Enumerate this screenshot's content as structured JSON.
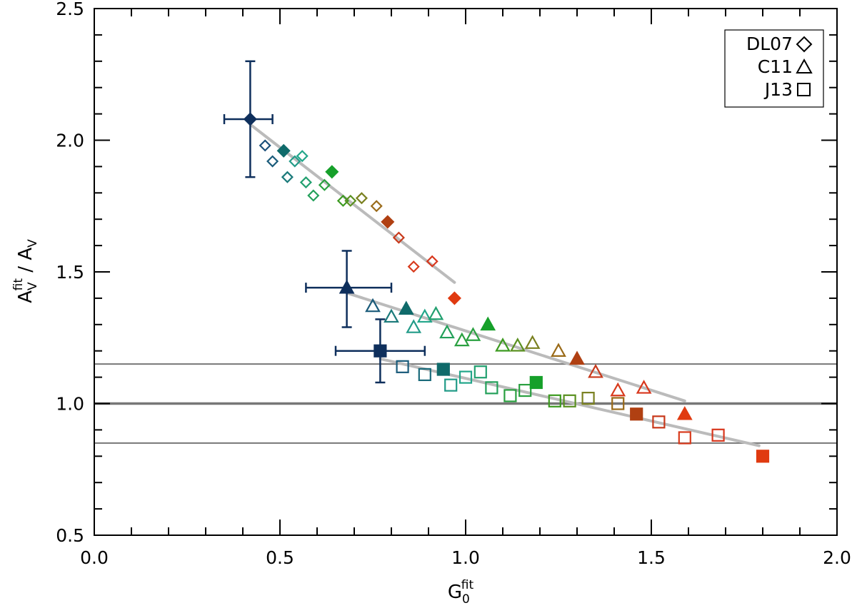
{
  "chart_data": {
    "type": "scatter",
    "title": "",
    "xlabel": {
      "base": "G",
      "sub": "0",
      "sup": "fit"
    },
    "ylabel": {
      "base": "A",
      "sub": "V",
      "sup": "fit",
      "separator": " / ",
      "denominator": {
        "base": "A",
        "sub": "V"
      }
    },
    "xlim": [
      0.0,
      2.0
    ],
    "ylim": [
      0.5,
      2.5
    ],
    "xticks": [
      "0.0",
      "0.5",
      "1.0",
      "1.5",
      "2.0"
    ],
    "yticks": [
      "0.5",
      "1.0",
      "1.5",
      "2.0",
      "2.5"
    ],
    "xtick_values": [
      0.0,
      0.5,
      1.0,
      1.5,
      2.0
    ],
    "ytick_values": [
      0.5,
      1.0,
      1.5,
      2.0,
      2.5
    ],
    "reference_lines": [
      {
        "y": 1.0,
        "color": "#777777",
        "style": "thick"
      },
      {
        "y": 1.15,
        "color": "#777777",
        "style": "thin"
      },
      {
        "y": 0.85,
        "color": "#777777",
        "style": "thin"
      }
    ],
    "legend": {
      "position": "top-right",
      "entries": [
        {
          "label": "DL07",
          "marker": "diamond"
        },
        {
          "label": "C11",
          "marker": "triangle"
        },
        {
          "label": "J13",
          "marker": "square"
        }
      ]
    },
    "series": [
      {
        "name": "DL07",
        "marker": "diamond",
        "points": [
          {
            "x": 0.42,
            "y": 2.08,
            "filled": true,
            "color": "#0e2f5c"
          },
          {
            "x": 0.46,
            "y": 1.98,
            "filled": false,
            "color": "#1a4f7a"
          },
          {
            "x": 0.48,
            "y": 1.92,
            "filled": false,
            "color": "#1a5b7a"
          },
          {
            "x": 0.51,
            "y": 1.96,
            "filled": true,
            "color": "#0f6a6a"
          },
          {
            "x": 0.52,
            "y": 1.86,
            "filled": false,
            "color": "#1a7a7a"
          },
          {
            "x": 0.54,
            "y": 1.92,
            "filled": false,
            "color": "#229b88"
          },
          {
            "x": 0.56,
            "y": 1.94,
            "filled": false,
            "color": "#22a68a"
          },
          {
            "x": 0.57,
            "y": 1.84,
            "filled": false,
            "color": "#22a070"
          },
          {
            "x": 0.59,
            "y": 1.79,
            "filled": false,
            "color": "#23a05a"
          },
          {
            "x": 0.62,
            "y": 1.83,
            "filled": false,
            "color": "#2aa040"
          },
          {
            "x": 0.64,
            "y": 1.88,
            "filled": true,
            "color": "#16a02a"
          },
          {
            "x": 0.67,
            "y": 1.77,
            "filled": false,
            "color": "#3c9a20"
          },
          {
            "x": 0.69,
            "y": 1.77,
            "filled": false,
            "color": "#5a9020"
          },
          {
            "x": 0.72,
            "y": 1.78,
            "filled": false,
            "color": "#7a8020"
          },
          {
            "x": 0.76,
            "y": 1.75,
            "filled": false,
            "color": "#9a6a18"
          },
          {
            "x": 0.79,
            "y": 1.69,
            "filled": true,
            "color": "#b04012"
          },
          {
            "x": 0.82,
            "y": 1.63,
            "filled": false,
            "color": "#c8381a"
          },
          {
            "x": 0.86,
            "y": 1.52,
            "filled": false,
            "color": "#d83a1c"
          },
          {
            "x": 0.91,
            "y": 1.54,
            "filled": false,
            "color": "#d8361c"
          },
          {
            "x": 0.97,
            "y": 1.4,
            "filled": true,
            "color": "#e03a10"
          }
        ],
        "error_bar": {
          "x": 0.42,
          "y": 2.08,
          "xerr": [
            0.35,
            0.48
          ],
          "yerr": [
            1.86,
            2.3
          ],
          "color": "#0e2f5c"
        },
        "trend_line": {
          "x": [
            0.42,
            0.97
          ],
          "y": [
            2.06,
            1.46
          ]
        }
      },
      {
        "name": "C11",
        "marker": "triangle",
        "points": [
          {
            "x": 0.68,
            "y": 1.44,
            "filled": true,
            "color": "#0e2f5c"
          },
          {
            "x": 0.75,
            "y": 1.37,
            "filled": false,
            "color": "#1a5b7a"
          },
          {
            "x": 0.8,
            "y": 1.33,
            "filled": false,
            "color": "#1a7a7a"
          },
          {
            "x": 0.84,
            "y": 1.36,
            "filled": true,
            "color": "#0f6a6a"
          },
          {
            "x": 0.86,
            "y": 1.29,
            "filled": false,
            "color": "#229b88"
          },
          {
            "x": 0.89,
            "y": 1.33,
            "filled": false,
            "color": "#22a68a"
          },
          {
            "x": 0.92,
            "y": 1.34,
            "filled": false,
            "color": "#22a070"
          },
          {
            "x": 0.95,
            "y": 1.27,
            "filled": false,
            "color": "#23a05a"
          },
          {
            "x": 0.99,
            "y": 1.24,
            "filled": false,
            "color": "#2aa040"
          },
          {
            "x": 1.02,
            "y": 1.26,
            "filled": false,
            "color": "#2aa040"
          },
          {
            "x": 1.06,
            "y": 1.3,
            "filled": true,
            "color": "#16a02a"
          },
          {
            "x": 1.1,
            "y": 1.22,
            "filled": false,
            "color": "#3c9a20"
          },
          {
            "x": 1.14,
            "y": 1.22,
            "filled": false,
            "color": "#5a9020"
          },
          {
            "x": 1.18,
            "y": 1.23,
            "filled": false,
            "color": "#7a8020"
          },
          {
            "x": 1.25,
            "y": 1.2,
            "filled": false,
            "color": "#9a6a18"
          },
          {
            "x": 1.3,
            "y": 1.17,
            "filled": true,
            "color": "#b04012"
          },
          {
            "x": 1.35,
            "y": 1.12,
            "filled": false,
            "color": "#c8381a"
          },
          {
            "x": 1.41,
            "y": 1.05,
            "filled": false,
            "color": "#d83a1c"
          },
          {
            "x": 1.48,
            "y": 1.06,
            "filled": false,
            "color": "#d8361c"
          },
          {
            "x": 1.59,
            "y": 0.96,
            "filled": true,
            "color": "#e03a10"
          }
        ],
        "error_bar": {
          "x": 0.68,
          "y": 1.44,
          "xerr": [
            0.57,
            0.8
          ],
          "yerr": [
            1.29,
            1.58
          ],
          "color": "#0e2f5c"
        },
        "trend_line": {
          "x": [
            0.68,
            1.59
          ],
          "y": [
            1.42,
            1.01
          ]
        }
      },
      {
        "name": "J13",
        "marker": "square",
        "points": [
          {
            "x": 0.77,
            "y": 1.2,
            "filled": true,
            "color": "#0e2f5c"
          },
          {
            "x": 0.83,
            "y": 1.14,
            "filled": false,
            "color": "#1a5b7a"
          },
          {
            "x": 0.89,
            "y": 1.11,
            "filled": false,
            "color": "#1a6a7a"
          },
          {
            "x": 0.94,
            "y": 1.13,
            "filled": true,
            "color": "#0f6a6a"
          },
          {
            "x": 0.96,
            "y": 1.07,
            "filled": false,
            "color": "#229b88"
          },
          {
            "x": 1.0,
            "y": 1.1,
            "filled": false,
            "color": "#22a68a"
          },
          {
            "x": 1.04,
            "y": 1.12,
            "filled": false,
            "color": "#22a070"
          },
          {
            "x": 1.07,
            "y": 1.06,
            "filled": false,
            "color": "#23a05a"
          },
          {
            "x": 1.12,
            "y": 1.03,
            "filled": false,
            "color": "#2aa040"
          },
          {
            "x": 1.16,
            "y": 1.05,
            "filled": false,
            "color": "#2aa040"
          },
          {
            "x": 1.19,
            "y": 1.08,
            "filled": true,
            "color": "#16a02a"
          },
          {
            "x": 1.24,
            "y": 1.01,
            "filled": false,
            "color": "#3c9a20"
          },
          {
            "x": 1.28,
            "y": 1.01,
            "filled": false,
            "color": "#5a9020"
          },
          {
            "x": 1.33,
            "y": 1.02,
            "filled": false,
            "color": "#7a8020"
          },
          {
            "x": 1.41,
            "y": 1.0,
            "filled": false,
            "color": "#9a6a18"
          },
          {
            "x": 1.46,
            "y": 0.96,
            "filled": true,
            "color": "#b04012"
          },
          {
            "x": 1.52,
            "y": 0.93,
            "filled": false,
            "color": "#c8381a"
          },
          {
            "x": 1.59,
            "y": 0.87,
            "filled": false,
            "color": "#d83a1c"
          },
          {
            "x": 1.68,
            "y": 0.88,
            "filled": false,
            "color": "#d8361c"
          },
          {
            "x": 1.8,
            "y": 0.8,
            "filled": true,
            "color": "#e03a10"
          }
        ],
        "error_bar": {
          "x": 0.77,
          "y": 1.2,
          "xerr": [
            0.65,
            0.89
          ],
          "yerr": [
            1.08,
            1.32
          ],
          "color": "#0e2f5c"
        },
        "trend_line": {
          "x": [
            0.77,
            1.79
          ],
          "y": [
            1.17,
            0.84
          ]
        }
      }
    ]
  },
  "colors": {
    "axis": "#000000",
    "trend_line": "#bbbbbb",
    "reference_line": "#777777",
    "background": "#ffffff"
  }
}
